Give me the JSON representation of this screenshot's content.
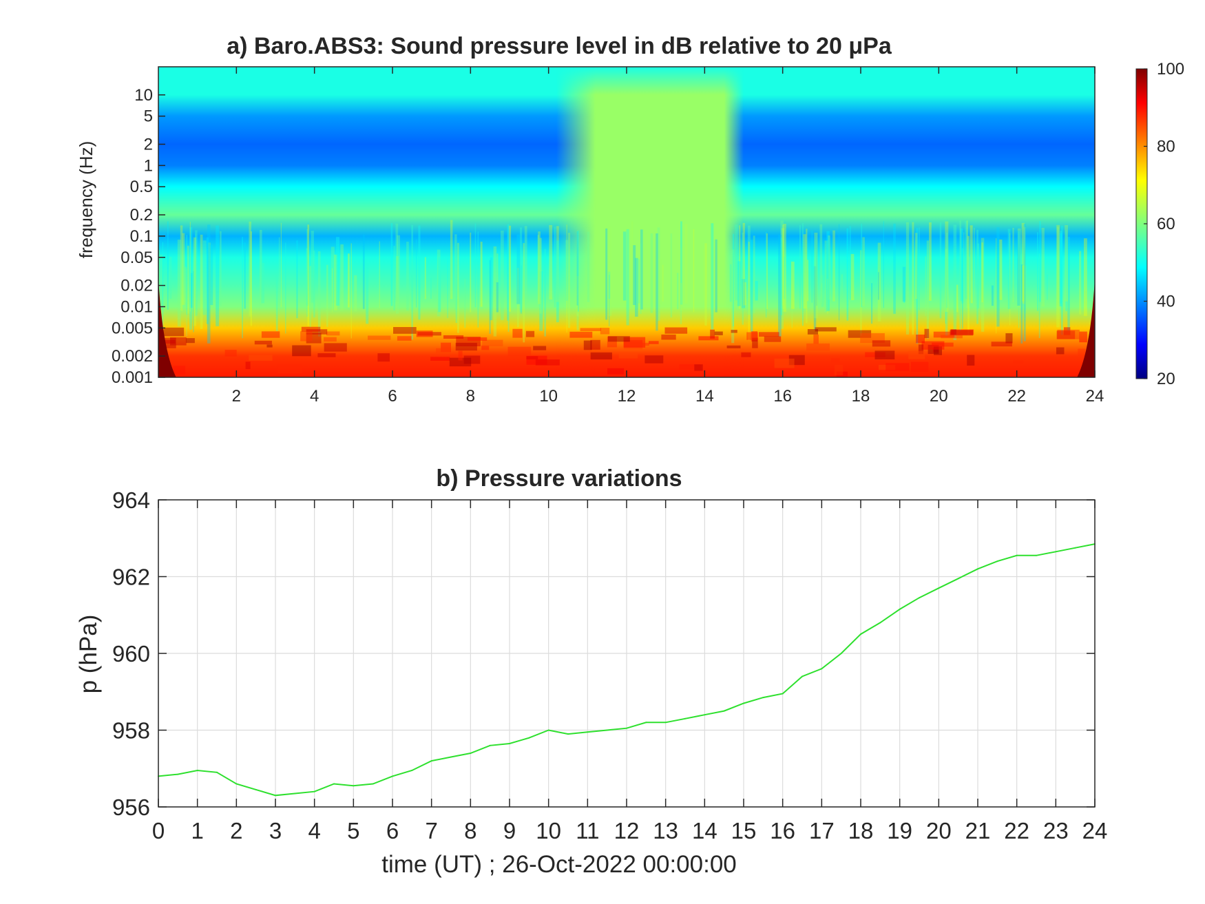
{
  "chart_data": [
    {
      "type": "heatmap",
      "title": "a) Baro.ABS3: Sound pressure level in dB relative to 20 μPa",
      "xlabel": "",
      "ylabel": "frequency (Hz)",
      "xlim": [
        0,
        24
      ],
      "ylim": [
        0.001,
        25
      ],
      "yscale": "log",
      "x_ticks": [
        2,
        4,
        6,
        8,
        10,
        12,
        14,
        16,
        18,
        20,
        22,
        24
      ],
      "y_ticks": [
        {
          "value": 0.001,
          "label": "0.001"
        },
        {
          "value": 0.002,
          "label": "0.002"
        },
        {
          "value": 0.005,
          "label": "0.005"
        },
        {
          "value": 0.01,
          "label": "0.01"
        },
        {
          "value": 0.02,
          "label": "0.02"
        },
        {
          "value": 0.05,
          "label": "0.05"
        },
        {
          "value": 0.1,
          "label": "0.1"
        },
        {
          "value": 0.2,
          "label": "0.2"
        },
        {
          "value": 0.5,
          "label": "0.5"
        },
        {
          "value": 1,
          "label": "1"
        },
        {
          "value": 2,
          "label": "2"
        },
        {
          "value": 5,
          "label": "5"
        },
        {
          "value": 10,
          "label": "10"
        }
      ],
      "colorbar": {
        "min": 20,
        "max": 100,
        "ticks": [
          20,
          40,
          60,
          80,
          100
        ],
        "colormap": "jet"
      },
      "grid": false,
      "levels_by_frequency_db": [
        {
          "f_hz": 0.001,
          "db": 88
        },
        {
          "f_hz": 0.002,
          "db": 86
        },
        {
          "f_hz": 0.005,
          "db": 74
        },
        {
          "f_hz": 0.01,
          "db": 60
        },
        {
          "f_hz": 0.02,
          "db": 56
        },
        {
          "f_hz": 0.05,
          "db": 52
        },
        {
          "f_hz": 0.1,
          "db": 44
        },
        {
          "f_hz": 0.2,
          "db": 58
        },
        {
          "f_hz": 0.5,
          "db": 50
        },
        {
          "f_hz": 1,
          "db": 40
        },
        {
          "f_hz": 2,
          "db": 38
        },
        {
          "f_hz": 5,
          "db": 42
        },
        {
          "f_hz": 10,
          "db": 52
        },
        {
          "f_hz": 25,
          "db": 52
        }
      ],
      "elevated_interval_hours": [
        10.5,
        15
      ]
    },
    {
      "type": "line",
      "title": "b) Pressure variations",
      "xlabel": "time (UT) ; 26-Oct-2022 00:00:00",
      "ylabel": "p (hPa)",
      "xlim": [
        0,
        24
      ],
      "ylim": [
        956,
        964
      ],
      "x_ticks": [
        0,
        1,
        2,
        3,
        4,
        5,
        6,
        7,
        8,
        9,
        10,
        11,
        12,
        13,
        14,
        15,
        16,
        17,
        18,
        19,
        20,
        21,
        22,
        23,
        24
      ],
      "y_ticks": [
        956,
        958,
        960,
        962,
        964
      ],
      "grid": true,
      "colors": {
        "line": "#2de02d"
      },
      "series": [
        {
          "x": [
            0,
            0.5,
            1,
            1.5,
            2,
            2.5,
            3,
            3.5,
            4,
            4.5,
            5,
            5.5,
            6,
            6.5,
            7,
            7.5,
            8,
            8.5,
            9,
            9.5,
            10,
            10.5,
            11,
            11.5,
            12,
            12.5,
            13,
            13.5,
            14,
            14.5,
            15,
            15.5,
            16,
            16.5,
            17,
            17.5,
            18,
            18.5,
            19,
            19.5,
            20,
            20.5,
            21,
            21.5,
            22,
            22.5,
            23,
            23.5,
            24
          ],
          "y": [
            956.8,
            956.85,
            956.95,
            956.9,
            956.6,
            956.45,
            956.3,
            956.35,
            956.4,
            956.6,
            956.55,
            956.6,
            956.8,
            956.95,
            957.2,
            957.3,
            957.4,
            957.6,
            957.65,
            957.8,
            958.0,
            957.9,
            957.95,
            958.0,
            958.05,
            958.2,
            958.2,
            958.3,
            958.4,
            958.5,
            958.7,
            958.85,
            958.95,
            959.4,
            959.6,
            960.0,
            960.5,
            960.8,
            961.15,
            961.45,
            961.7,
            961.95,
            962.2,
            962.4,
            962.55,
            962.55,
            962.65,
            962.75,
            962.85
          ]
        }
      ]
    }
  ]
}
